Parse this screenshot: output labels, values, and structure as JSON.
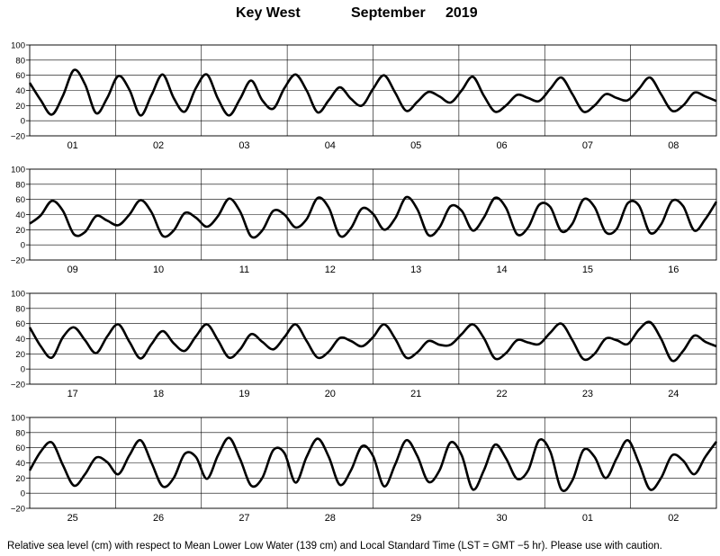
{
  "header": {
    "station": "Key West",
    "month": "September",
    "year": "2019"
  },
  "footer": {
    "caption": "Relative sea level (cm) with respect to Mean Lower Low Water (139 cm) and Local Standard Time (LST = GMT −5 hr). Please use with caution."
  },
  "chart_data": [
    {
      "type": "line",
      "ylim": [
        -20,
        100
      ],
      "yticks": [
        -20,
        0,
        20,
        40,
        60,
        80,
        100
      ],
      "grid": true,
      "days": [
        "01",
        "02",
        "03",
        "04",
        "05",
        "06",
        "07",
        "08"
      ],
      "series": [
        {
          "values": [
            50,
            27,
            8,
            33,
            67,
            48,
            10,
            30,
            59,
            41,
            7,
            34,
            61,
            30,
            12,
            43,
            61,
            29,
            7,
            29,
            53,
            27,
            16,
            43,
            61,
            40,
            11,
            27,
            44,
            29,
            20,
            42,
            60,
            37,
            13,
            25,
            38,
            32,
            24,
            40,
            58,
            33,
            12,
            20,
            34,
            30,
            26,
            42,
            57,
            35,
            12,
            20,
            35,
            30,
            27,
            42,
            57,
            35,
            13,
            20,
            37,
            32,
            26
          ]
        }
      ],
      "color": "#000000"
    },
    {
      "type": "line",
      "ylim": [
        -20,
        100
      ],
      "yticks": [
        -20,
        0,
        20,
        40,
        60,
        80,
        100
      ],
      "grid": true,
      "days": [
        "09",
        "10",
        "11",
        "12",
        "13",
        "14",
        "15",
        "16"
      ],
      "series": [
        {
          "values": [
            28,
            39,
            58,
            45,
            14,
            17,
            38,
            32,
            26,
            40,
            59,
            43,
            12,
            19,
            42,
            36,
            24,
            38,
            61,
            44,
            11,
            19,
            45,
            40,
            23,
            34,
            62,
            49,
            12,
            22,
            48,
            41,
            20,
            35,
            63,
            47,
            13,
            23,
            51,
            45,
            19,
            36,
            62,
            49,
            14,
            23,
            53,
            50,
            18,
            28,
            60,
            50,
            17,
            21,
            55,
            52,
            16,
            27,
            58,
            51,
            19,
            34,
            57
          ]
        }
      ],
      "color": "#000000"
    },
    {
      "type": "line",
      "ylim": [
        -20,
        100
      ],
      "yticks": [
        -20,
        0,
        20,
        40,
        60,
        80,
        100
      ],
      "grid": true,
      "days": [
        "17",
        "18",
        "19",
        "20",
        "21",
        "22",
        "23",
        "24"
      ],
      "series": [
        {
          "values": [
            55,
            30,
            15,
            42,
            55,
            38,
            21,
            43,
            59,
            36,
            14,
            33,
            50,
            34,
            24,
            43,
            59,
            38,
            15,
            26,
            46,
            36,
            26,
            42,
            59,
            37,
            15,
            23,
            41,
            37,
            30,
            42,
            59,
            40,
            15,
            22,
            37,
            32,
            32,
            46,
            59,
            41,
            14,
            21,
            38,
            35,
            33,
            48,
            60,
            38,
            13,
            20,
            40,
            38,
            33,
            52,
            62,
            40,
            11,
            24,
            44,
            36,
            30
          ]
        }
      ],
      "color": "#000000"
    },
    {
      "type": "line",
      "ylim": [
        -20,
        100
      ],
      "yticks": [
        -20,
        0,
        20,
        40,
        60,
        80,
        100
      ],
      "grid": true,
      "days": [
        "25",
        "26",
        "27",
        "28",
        "29",
        "30",
        "01",
        "02"
      ],
      "series": [
        {
          "values": [
            30,
            55,
            67,
            37,
            10,
            25,
            47,
            41,
            25,
            50,
            70,
            40,
            9,
            20,
            52,
            48,
            19,
            50,
            73,
            45,
            10,
            20,
            57,
            53,
            14,
            48,
            72,
            48,
            11,
            30,
            62,
            49,
            9,
            38,
            70,
            49,
            15,
            30,
            67,
            50,
            5,
            30,
            64,
            46,
            19,
            30,
            70,
            55,
            5,
            17,
            57,
            48,
            20,
            46,
            70,
            40,
            5,
            20,
            50,
            43,
            25,
            48,
            68
          ]
        }
      ],
      "color": "#000000"
    }
  ]
}
